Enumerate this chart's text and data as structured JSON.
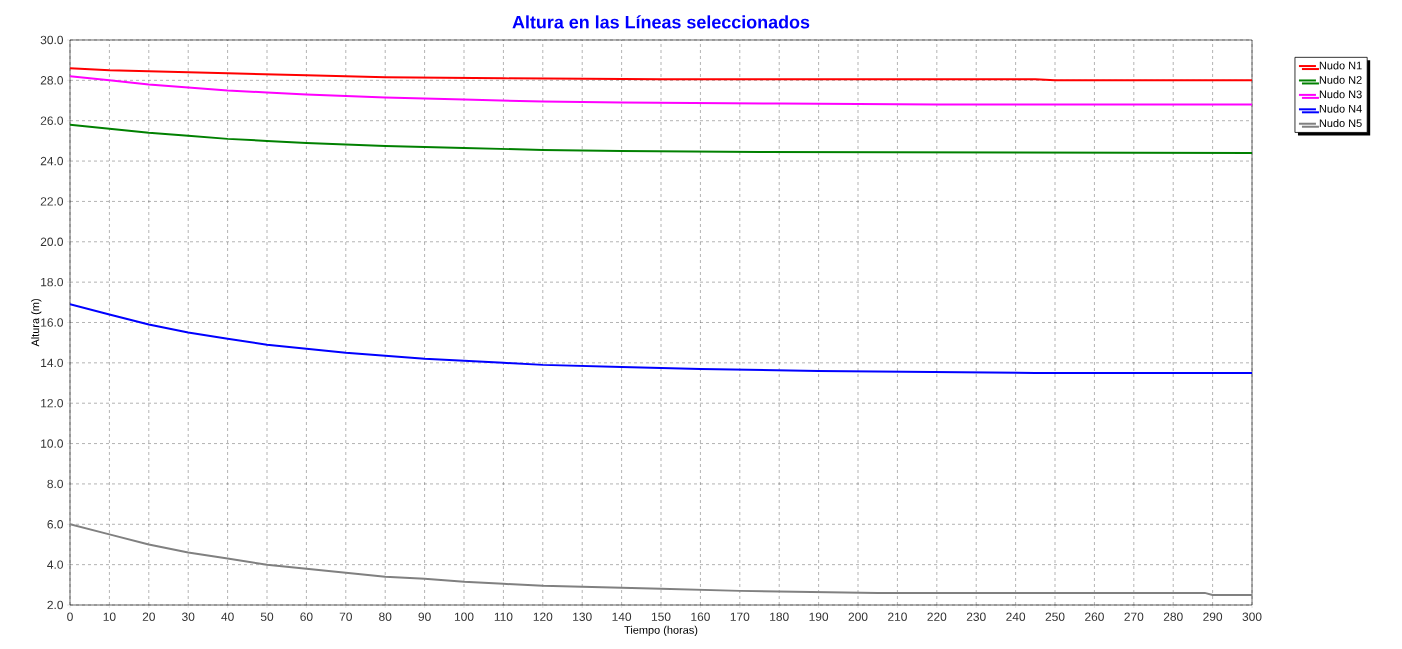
{
  "chart_data": {
    "type": "line",
    "title": "Altura en las Líneas seleccionados",
    "xlabel": "Tiempo (horas)",
    "ylabel": "Altura (m)",
    "xlim": [
      0,
      300
    ],
    "ylim": [
      2,
      30
    ],
    "xticks": [
      0,
      10,
      20,
      30,
      40,
      50,
      60,
      70,
      80,
      90,
      100,
      110,
      120,
      130,
      140,
      150,
      160,
      170,
      180,
      190,
      200,
      210,
      220,
      230,
      240,
      250,
      260,
      270,
      280,
      290,
      300
    ],
    "yticks": [
      {
        "value": 2,
        "label": "2.0"
      },
      {
        "value": 4,
        "label": "4.0"
      },
      {
        "value": 6,
        "label": "6.0"
      },
      {
        "value": 8,
        "label": "8.0"
      },
      {
        "value": 10,
        "label": "10.0"
      },
      {
        "value": 12,
        "label": "12.0"
      },
      {
        "value": 14,
        "label": "14.0"
      },
      {
        "value": 16,
        "label": "16.0"
      },
      {
        "value": 18,
        "label": "18.0"
      },
      {
        "value": 20,
        "label": "20.0"
      },
      {
        "value": 22,
        "label": "22.0"
      },
      {
        "value": 24,
        "label": "24.0"
      },
      {
        "value": 26,
        "label": "26.0"
      },
      {
        "value": 28,
        "label": "28.0"
      },
      {
        "value": 30,
        "label": "30.0"
      }
    ],
    "grid": true,
    "legend": "top right",
    "marker": "none",
    "line_style": "solid",
    "series": [
      {
        "name": "Nudo N1",
        "color": "#ff0000",
        "x": [
          0,
          10,
          20,
          40,
          60,
          80,
          110,
          150,
          200,
          245,
          250,
          300
        ],
        "values": [
          28.6,
          28.5,
          28.45,
          28.35,
          28.25,
          28.15,
          28.1,
          28.05,
          28.05,
          28.05,
          28.0,
          28.0
        ]
      },
      {
        "name": "Nudo N2",
        "color": "#008000",
        "x": [
          0,
          10,
          20,
          30,
          40,
          50,
          60,
          80,
          100,
          120,
          140,
          175,
          300
        ],
        "values": [
          25.8,
          25.6,
          25.4,
          25.25,
          25.1,
          25.0,
          24.9,
          24.75,
          24.65,
          24.55,
          24.5,
          24.45,
          24.4
        ]
      },
      {
        "name": "Nudo N3",
        "color": "#ff00ff",
        "x": [
          0,
          10,
          20,
          30,
          40,
          50,
          60,
          80,
          100,
          120,
          140,
          180,
          220,
          300
        ],
        "values": [
          28.2,
          28.0,
          27.8,
          27.65,
          27.5,
          27.4,
          27.3,
          27.15,
          27.05,
          26.95,
          26.9,
          26.85,
          26.8,
          26.8
        ]
      },
      {
        "name": "Nudo N4",
        "color": "#0000ff",
        "x": [
          0,
          10,
          20,
          30,
          40,
          50,
          60,
          70,
          80,
          90,
          100,
          110,
          120,
          140,
          160,
          190,
          245,
          300
        ],
        "values": [
          16.9,
          16.4,
          15.9,
          15.5,
          15.2,
          14.9,
          14.7,
          14.5,
          14.35,
          14.2,
          14.1,
          14.0,
          13.9,
          13.8,
          13.7,
          13.6,
          13.5,
          13.5
        ]
      },
      {
        "name": "Nudo N5",
        "color": "#808080",
        "x": [
          0,
          10,
          20,
          30,
          40,
          50,
          60,
          70,
          80,
          90,
          100,
          110,
          120,
          130,
          140,
          150,
          170,
          205,
          288,
          290,
          300
        ],
        "values": [
          6.0,
          5.5,
          5.0,
          4.6,
          4.3,
          4.0,
          3.8,
          3.6,
          3.4,
          3.3,
          3.15,
          3.05,
          2.95,
          2.9,
          2.85,
          2.8,
          2.7,
          2.6,
          2.6,
          2.5,
          2.5
        ]
      }
    ]
  }
}
